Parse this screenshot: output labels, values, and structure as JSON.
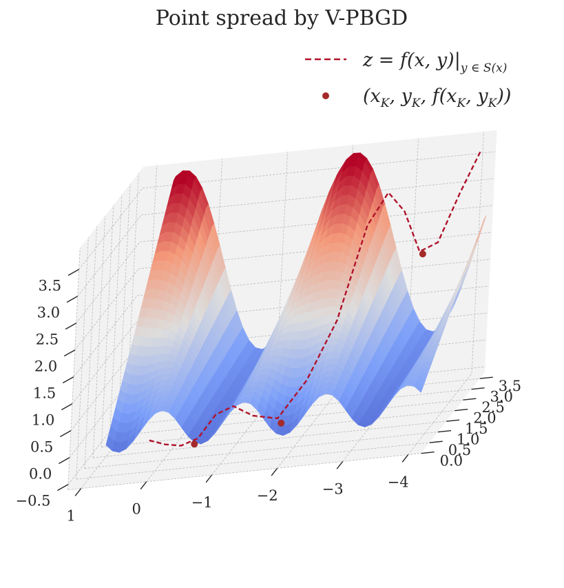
{
  "chart_data": {
    "type": "surface3d",
    "title": "Point spread by V-PBGD",
    "x_ticks": [
      "1",
      "0",
      "−1",
      "−2",
      "−3",
      "−4"
    ],
    "y_ticks": [
      "0.0",
      "0.5",
      "1.0",
      "1.5",
      "2.0",
      "2.5",
      "3.0",
      "3.5"
    ],
    "z_ticks": [
      "−0.5",
      "0.0",
      "0.5",
      "1.0",
      "1.5",
      "2.0",
      "2.5",
      "3.0",
      "3.5"
    ],
    "xlim": [
      1.2,
      -4.2
    ],
    "ylim": [
      0.0,
      3.8
    ],
    "zlim": [
      -0.6,
      3.9
    ],
    "colormap": "coolwarm",
    "colors": {
      "curve": "#b0122b",
      "points": "#a52a2a",
      "pane": "#f2f2f2",
      "grid": "#b8b8b8",
      "text": "#262626"
    },
    "legend": {
      "position": "top-right",
      "entries": [
        {
          "label_main": "z = f(x, y)|",
          "label_sub": "y ∈ S(x)",
          "style": "dashed-line"
        },
        {
          "label_main": "(x",
          "label_sub": "K",
          "label_mid": ", y",
          "label_sub2": "K",
          "label_end": ", f(x",
          "label_sub3": "K",
          "label_end2": ", y",
          "label_sub4": "K",
          "label_end3": "))",
          "style": "marker"
        }
      ]
    },
    "curve": {
      "name": "z = f(x, y) restricted to y in S(x)",
      "x": [
        0.0,
        -0.25,
        -0.5,
        -0.75,
        -1.0,
        -1.25,
        -1.5,
        -1.75,
        -2.0,
        -2.25,
        -2.5,
        -2.75,
        -3.0,
        -3.25,
        -3.5,
        -3.75,
        -4.0
      ],
      "y": [
        0.05,
        0.03,
        0.02,
        0.03,
        0.06,
        0.12,
        0.35,
        0.9,
        1.6,
        2.3,
        2.9,
        3.1,
        3.15,
        3.2,
        3.3,
        3.5,
        3.7
      ],
      "z": [
        0.15,
        0.05,
        0.0,
        0.1,
        0.5,
        0.6,
        0.3,
        0.0,
        0.4,
        1.2,
        2.7,
        3.2,
        2.8,
        2.0,
        2.1,
        2.9,
        3.6
      ]
    },
    "points": {
      "name": "(x_K, y_K, f(x_K, y_K))",
      "x": [
        -0.7,
        -2.0,
        -3.3
      ],
      "y": [
        0.03,
        0.1,
        3.2
      ],
      "z": [
        0.0,
        0.2,
        1.95
      ]
    }
  }
}
